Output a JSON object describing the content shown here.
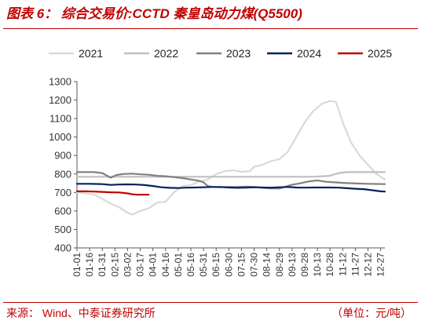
{
  "header": {
    "title": "图表 6：  综合交易价:CCTD 秦皇岛动力煤(Q5500)"
  },
  "footer": {
    "source": "来源：   Wind、中泰证券研究所",
    "unit": "（单位：元/吨）"
  },
  "chart_data": {
    "type": "line",
    "title": "综合交易价:CCTD 秦皇岛动力煤(Q5500)",
    "xlabel": "",
    "ylabel": "",
    "ylim": [
      400,
      1300
    ],
    "yticks": [
      400,
      500,
      600,
      700,
      800,
      900,
      1000,
      1100,
      1200,
      1300
    ],
    "x_tick_labels": [
      "01-01",
      "01-16",
      "01-31",
      "02-15",
      "03-02",
      "03-17",
      "04-01",
      "04-16",
      "05-01",
      "05-16",
      "05-31",
      "06-15",
      "06-30",
      "07-15",
      "07-30",
      "08-14",
      "08-29",
      "09-13",
      "09-28",
      "10-13",
      "10-28",
      "11-12",
      "11-27",
      "12-12",
      "12-27"
    ],
    "legend_position": "top",
    "grid": false,
    "series": [
      {
        "name": "2021",
        "color": "#d9d9d9",
        "points": [
          [
            0,
            700
          ],
          [
            10,
            695
          ],
          [
            20,
            690
          ],
          [
            30,
            665
          ],
          [
            40,
            640
          ],
          [
            50,
            620
          ],
          [
            60,
            590
          ],
          [
            66,
            580
          ],
          [
            75,
            600
          ],
          [
            85,
            615
          ],
          [
            95,
            645
          ],
          [
            105,
            650
          ],
          [
            115,
            700
          ],
          [
            125,
            735
          ],
          [
            135,
            740
          ],
          [
            145,
            760
          ],
          [
            155,
            770
          ],
          [
            165,
            800
          ],
          [
            175,
            815
          ],
          [
            185,
            820
          ],
          [
            195,
            812
          ],
          [
            205,
            815
          ],
          [
            210,
            840
          ],
          [
            220,
            850
          ],
          [
            230,
            870
          ],
          [
            240,
            880
          ],
          [
            250,
            920
          ],
          [
            260,
            1000
          ],
          [
            270,
            1080
          ],
          [
            280,
            1140
          ],
          [
            290,
            1180
          ],
          [
            300,
            1195
          ],
          [
            307,
            1190
          ],
          [
            315,
            1080
          ],
          [
            325,
            970
          ],
          [
            335,
            900
          ],
          [
            345,
            850
          ],
          [
            355,
            800
          ],
          [
            365,
            770
          ]
        ]
      },
      {
        "name": "2022",
        "color": "#bfbfbf",
        "points": [
          [
            0,
            785
          ],
          [
            40,
            785
          ],
          [
            80,
            785
          ],
          [
            120,
            785
          ],
          [
            160,
            785
          ],
          [
            200,
            785
          ],
          [
            240,
            785
          ],
          [
            280,
            785
          ],
          [
            300,
            790
          ],
          [
            310,
            805
          ],
          [
            320,
            810
          ],
          [
            340,
            810
          ],
          [
            365,
            810
          ]
        ]
      },
      {
        "name": "2023",
        "color": "#808080",
        "points": [
          [
            0,
            810
          ],
          [
            10,
            810
          ],
          [
            20,
            810
          ],
          [
            30,
            805
          ],
          [
            40,
            780
          ],
          [
            47,
            795
          ],
          [
            55,
            800
          ],
          [
            65,
            802
          ],
          [
            75,
            798
          ],
          [
            85,
            796
          ],
          [
            95,
            790
          ],
          [
            105,
            788
          ],
          [
            115,
            783
          ],
          [
            125,
            778
          ],
          [
            135,
            770
          ],
          [
            145,
            763
          ],
          [
            150,
            755
          ],
          [
            155,
            735
          ],
          [
            160,
            730
          ],
          [
            170,
            728
          ],
          [
            180,
            730
          ],
          [
            190,
            730
          ],
          [
            200,
            732
          ],
          [
            210,
            730
          ],
          [
            220,
            725
          ],
          [
            230,
            722
          ],
          [
            240,
            722
          ],
          [
            245,
            728
          ],
          [
            255,
            742
          ],
          [
            265,
            750
          ],
          [
            275,
            760
          ],
          [
            285,
            765
          ],
          [
            295,
            758
          ],
          [
            305,
            755
          ],
          [
            315,
            752
          ],
          [
            325,
            750
          ],
          [
            335,
            748
          ],
          [
            345,
            747
          ],
          [
            355,
            746
          ],
          [
            365,
            745
          ]
        ]
      },
      {
        "name": "2024",
        "color": "#002060",
        "points": [
          [
            0,
            747
          ],
          [
            15,
            747
          ],
          [
            30,
            745
          ],
          [
            40,
            741
          ],
          [
            50,
            743
          ],
          [
            60,
            744
          ],
          [
            70,
            743
          ],
          [
            80,
            740
          ],
          [
            90,
            735
          ],
          [
            100,
            728
          ],
          [
            110,
            725
          ],
          [
            120,
            724
          ],
          [
            130,
            726
          ],
          [
            140,
            727
          ],
          [
            150,
            728
          ],
          [
            160,
            730
          ],
          [
            170,
            730
          ],
          [
            180,
            727
          ],
          [
            190,
            725
          ],
          [
            200,
            726
          ],
          [
            210,
            728
          ],
          [
            220,
            727
          ],
          [
            230,
            726
          ],
          [
            240,
            728
          ],
          [
            250,
            730
          ],
          [
            260,
            727
          ],
          [
            270,
            726
          ],
          [
            280,
            727
          ],
          [
            290,
            727
          ],
          [
            300,
            727
          ],
          [
            310,
            726
          ],
          [
            320,
            723
          ],
          [
            330,
            720
          ],
          [
            340,
            718
          ],
          [
            350,
            712
          ],
          [
            360,
            706
          ],
          [
            365,
            705
          ]
        ]
      },
      {
        "name": "2025",
        "color": "#c00000",
        "points": [
          [
            0,
            706
          ],
          [
            10,
            706
          ],
          [
            20,
            705
          ],
          [
            30,
            703
          ],
          [
            40,
            701
          ],
          [
            50,
            700
          ],
          [
            60,
            695
          ],
          [
            66,
            690
          ],
          [
            72,
            688
          ],
          [
            80,
            688
          ],
          [
            85,
            688
          ]
        ]
      }
    ]
  }
}
